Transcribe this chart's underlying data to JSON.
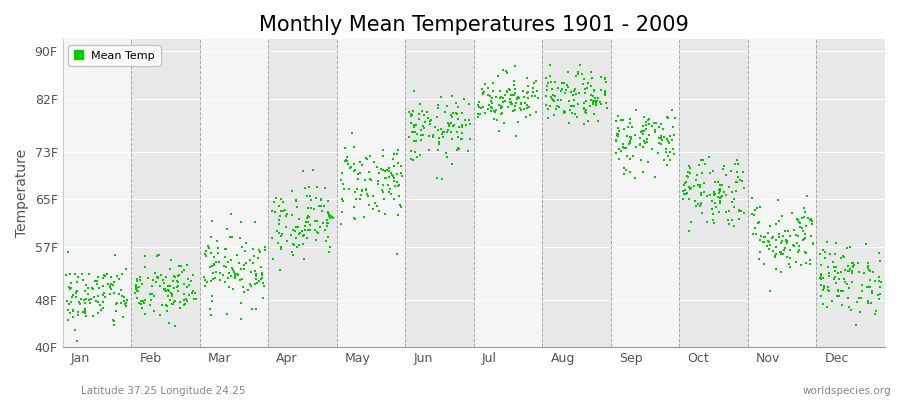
{
  "title": "Monthly Mean Temperatures 1901 - 2009",
  "ylabel": "Temperature",
  "subtitle_left": "Latitude 37.25 Longitude 24.25",
  "subtitle_right": "worldspecies.org",
  "yticks": [
    40,
    48,
    57,
    65,
    73,
    82,
    90
  ],
  "ytick_labels": [
    "40F",
    "48F",
    "57F",
    "65F",
    "73F",
    "82F",
    "90F"
  ],
  "ylim": [
    40,
    92
  ],
  "months": [
    "Jan",
    "Feb",
    "Mar",
    "Apr",
    "May",
    "Jun",
    "Jul",
    "Aug",
    "Sep",
    "Oct",
    "Nov",
    "Dec"
  ],
  "month_means_F": [
    48.5,
    49.5,
    53.5,
    61.5,
    68.0,
    76.5,
    82.0,
    82.0,
    75.0,
    66.5,
    58.5,
    51.5
  ],
  "month_stds_F": [
    2.8,
    2.8,
    3.2,
    3.2,
    3.5,
    2.8,
    2.2,
    2.2,
    2.8,
    3.2,
    3.2,
    3.0
  ],
  "n_years": 109,
  "dot_color": "#00cc00",
  "dot_size": 4,
  "bg_color": "#ffffff",
  "band_color_light": "#f5f5f5",
  "band_color_dark": "#e8e8e8",
  "legend_label": "Mean Temp",
  "title_fontsize": 15,
  "axis_label_fontsize": 10,
  "tick_fontsize": 9,
  "seed": 42
}
